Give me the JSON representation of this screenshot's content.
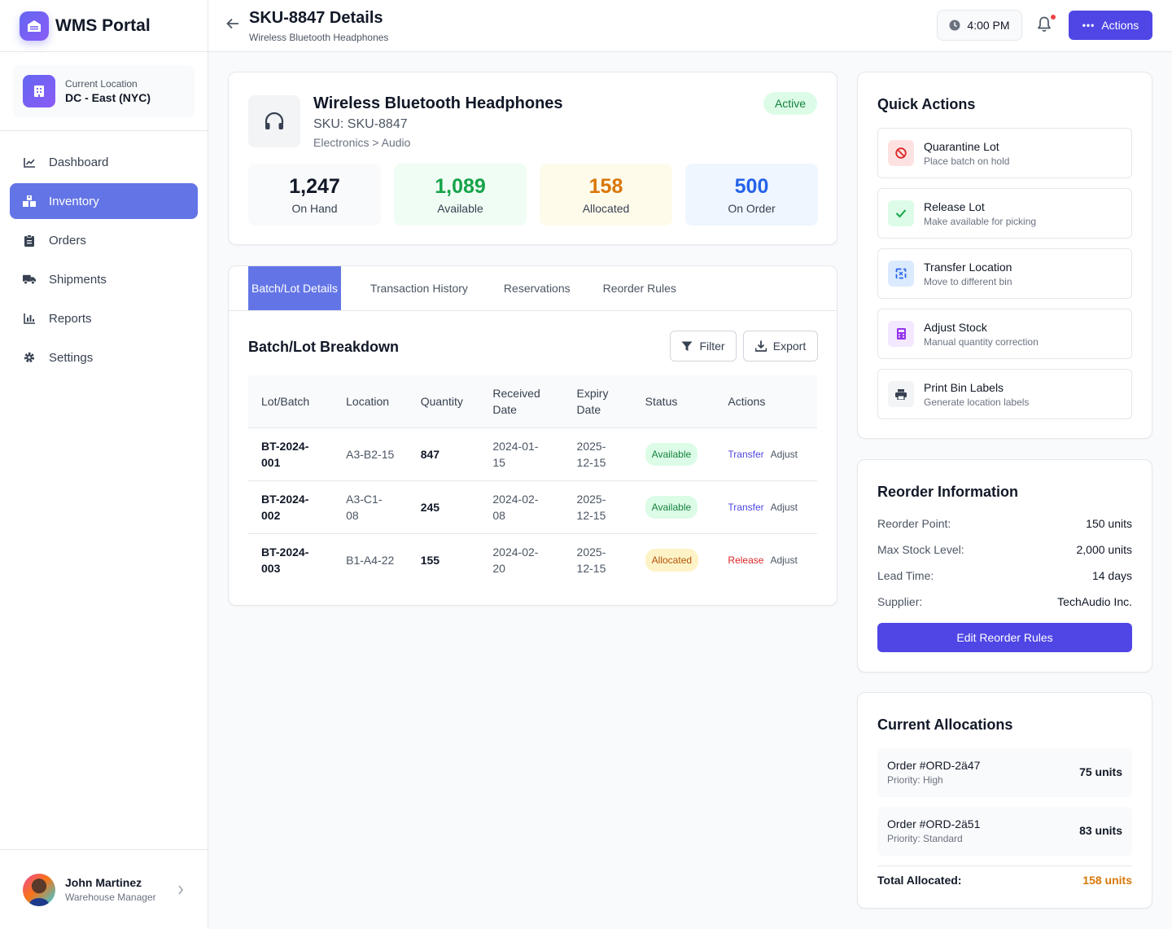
{
  "brand": {
    "name": "WMS Portal"
  },
  "location": {
    "caption": "Current Location",
    "value": "DC - East (NYC)"
  },
  "nav": [
    {
      "label": "Dashboard",
      "icon": "chart-line-icon"
    },
    {
      "label": "Inventory",
      "icon": "boxes-icon",
      "active": true
    },
    {
      "label": "Orders",
      "icon": "clipboard-icon"
    },
    {
      "label": "Shipments",
      "icon": "truck-icon"
    },
    {
      "label": "Reports",
      "icon": "bar-chart-icon"
    },
    {
      "label": "Settings",
      "icon": "gear-icon"
    }
  ],
  "user": {
    "name": "John Martinez",
    "role": "Warehouse Manager"
  },
  "header": {
    "title": "SKU-8847 Details",
    "subtitle": "Wireless Bluetooth Headphones",
    "time": "4:00 PM",
    "actions_label": "Actions"
  },
  "product": {
    "name": "Wireless Bluetooth Headphones",
    "sku": "SKU: SKU-8847",
    "category": "Electronics > Audio",
    "status": "Active",
    "stats": [
      {
        "value": "1,247",
        "label": "On Hand",
        "color": "#111827",
        "bg": "#f9fafb"
      },
      {
        "value": "1,089",
        "label": "Available",
        "color": "#16a34a",
        "bg": "#f0fdf4"
      },
      {
        "value": "158",
        "label": "Allocated",
        "color": "#d97706",
        "bg": "#fffbeb"
      },
      {
        "value": "500",
        "label": "On Order",
        "color": "#2563eb",
        "bg": "#eff6ff"
      }
    ]
  },
  "tabs": [
    "Batch/Lot Details",
    "Transaction History",
    "Reservations",
    "Reorder Rules"
  ],
  "batch": {
    "title": "Batch/Lot Breakdown",
    "filter_label": "Filter",
    "export_label": "Export",
    "headers": [
      "Lot/Batch",
      "Location",
      "Quantity",
      "Received Date",
      "Expiry Date",
      "Status",
      "Actions"
    ],
    "rows": [
      {
        "lot": "BT-2024-001",
        "location": "A3-B2-15",
        "qty": "847",
        "received": "2024-01-15",
        "expiry": "2025-12-15",
        "status": "Available",
        "action1": "Transfer",
        "action2": "Adjust"
      },
      {
        "lot": "BT-2024-002",
        "location": "A3-C1-08",
        "qty": "245",
        "received": "2024-02-08",
        "expiry": "2025-12-15",
        "status": "Available",
        "action1": "Transfer",
        "action2": "Adjust"
      },
      {
        "lot": "BT-2024-003",
        "location": "B1-A4-22",
        "qty": "155",
        "received": "2024-02-20",
        "expiry": "2025-12-15",
        "status": "Allocated",
        "action1": "Release",
        "action2": "Adjust"
      }
    ]
  },
  "quick_actions": {
    "title": "Quick Actions",
    "items": [
      {
        "title": "Quarantine Lot",
        "sub": "Place batch on hold",
        "icon": "ban-icon"
      },
      {
        "title": "Release Lot",
        "sub": "Make available for picking",
        "icon": "check-icon"
      },
      {
        "title": "Transfer Location",
        "sub": "Move to different bin",
        "icon": "transfer-icon"
      },
      {
        "title": "Adjust Stock",
        "sub": "Manual quantity correction",
        "icon": "calculator-icon"
      },
      {
        "title": "Print Bin Labels",
        "sub": "Generate location labels",
        "icon": "printer-icon"
      }
    ]
  },
  "reorder": {
    "title": "Reorder Information",
    "rows": [
      {
        "k": "Reorder Point:",
        "v": "150 units"
      },
      {
        "k": "Max Stock Level:",
        "v": "2,000 units"
      },
      {
        "k": "Lead Time:",
        "v": "14 days"
      },
      {
        "k": "Supplier:",
        "v": "TechAudio Inc."
      }
    ],
    "button": "Edit Reorder Rules"
  },
  "allocations": {
    "title": "Current Allocations",
    "items": [
      {
        "order": "Order #ORD-2ä47",
        "priority": "Priority: High",
        "units": "75 units"
      },
      {
        "order": "Order #ORD-2ä51",
        "priority": "Priority: Standard",
        "units": "83 units"
      }
    ],
    "total_label": "Total Allocated:",
    "total_value": "158 units"
  }
}
